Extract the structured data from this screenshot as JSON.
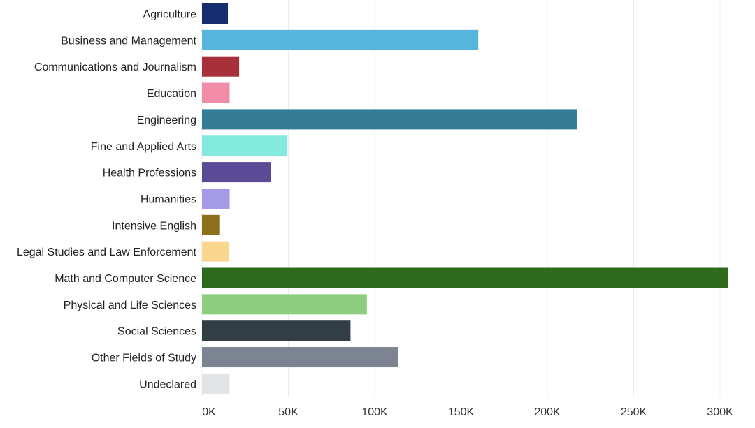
{
  "chart_data": {
    "type": "bar",
    "orientation": "horizontal",
    "title": "",
    "xlabel": "",
    "ylabel": "",
    "xlim": [
      0,
      310000
    ],
    "grid": "vertical",
    "legend": "none",
    "x_ticks": [
      {
        "value": 0,
        "label": "0K"
      },
      {
        "value": 50000,
        "label": "50K"
      },
      {
        "value": 100000,
        "label": "100K"
      },
      {
        "value": 150000,
        "label": "150K"
      },
      {
        "value": 200000,
        "label": "200K"
      },
      {
        "value": 250000,
        "label": "250K"
      },
      {
        "value": 300000,
        "label": "300K"
      }
    ],
    "categories": [
      "Agriculture",
      "Business and Management",
      "Communications and Journalism",
      "Education",
      "Engineering",
      "Fine and Applied Arts",
      "Health Professions",
      "Humanities",
      "Intensive English",
      "Legal Studies and Law Enforcement",
      "Math and Computer Science",
      "Physical and Life Sciences",
      "Social Sciences",
      "Other Fields of Study",
      "Undeclared"
    ],
    "values": [
      15000,
      160000,
      21500,
      16000,
      217000,
      49500,
      40000,
      16000,
      10000,
      15500,
      304500,
      95500,
      86000,
      113500,
      16000
    ],
    "colors": [
      "#152d6e",
      "#57b4dc",
      "#a8303b",
      "#f08ba8",
      "#357d97",
      "#84e9de",
      "#5b4a95",
      "#a59ae5",
      "#8b6f1d",
      "#f8d68e",
      "#2e6a1c",
      "#8ccd7e",
      "#323e46",
      "#7b8490",
      "#e3e4e6"
    ]
  }
}
